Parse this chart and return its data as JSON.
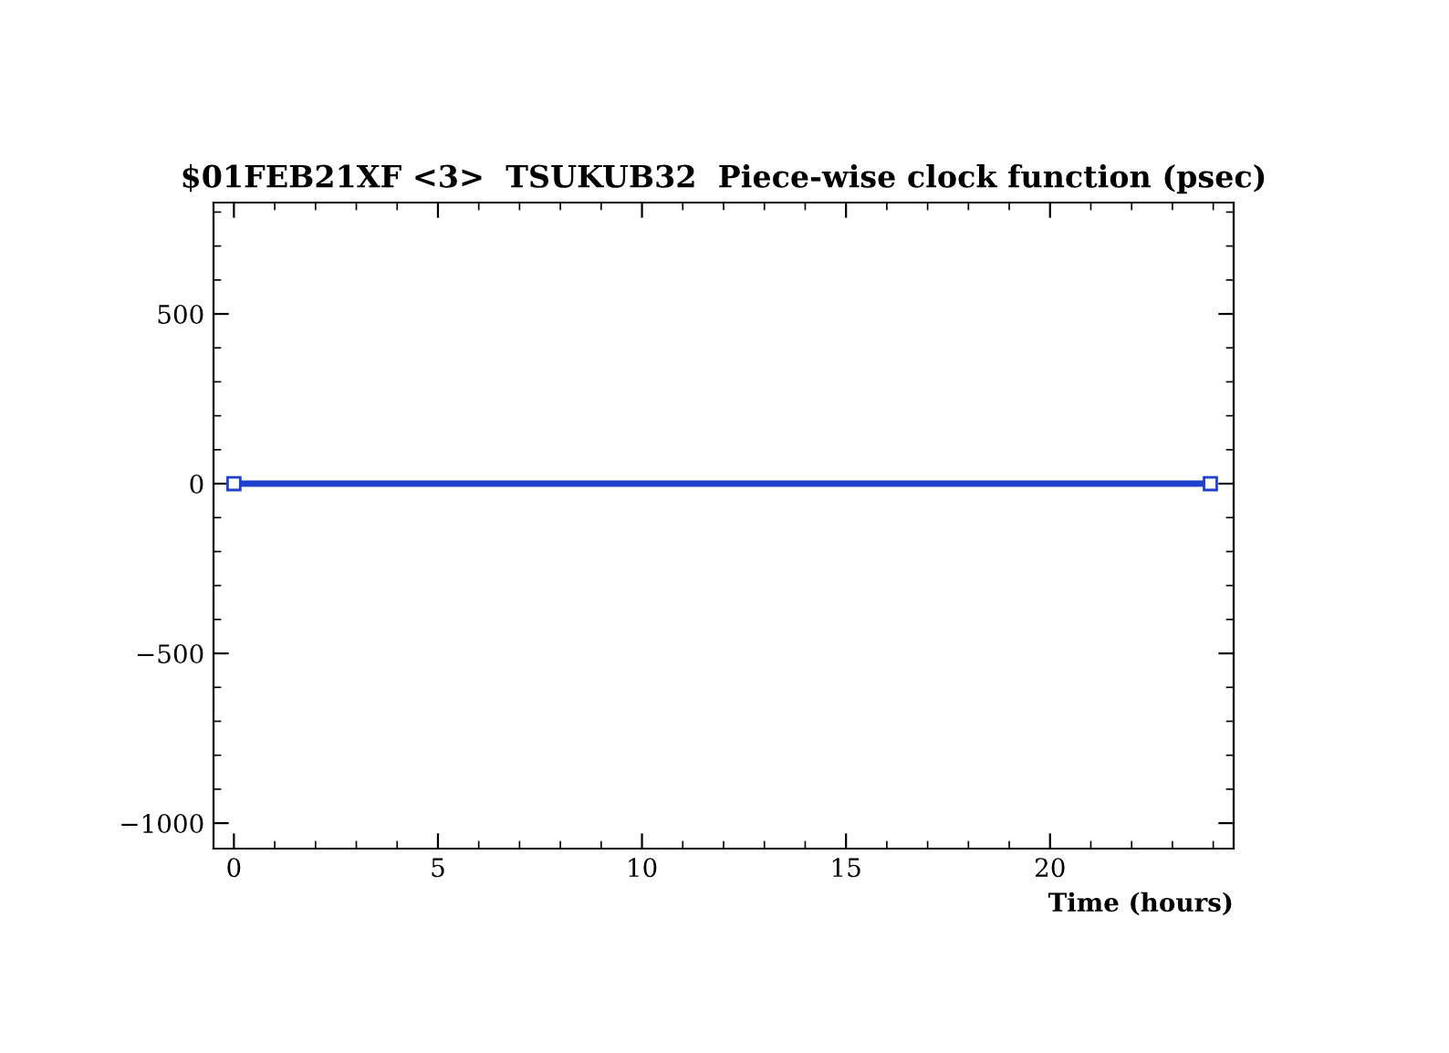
{
  "chart_data": {
    "type": "line",
    "title": "$01FEB21XF <3>  TSUKUB32  Piece-wise clock function (psec)",
    "xlabel": "Time (hours)",
    "x": [
      0,
      23.93
    ],
    "series": [
      {
        "color": "#1f3fcf",
        "values": [
          0,
          0
        ]
      }
    ],
    "xlim": [
      -0.5,
      24.5
    ],
    "xticks": [
      0,
      5,
      10,
      15,
      20
    ],
    "ylim": [
      -1075,
      828
    ],
    "yticks": [
      -1000,
      -500,
      0,
      500
    ],
    "marker": "square",
    "line_style": "solid",
    "grid": false,
    "legend": false
  }
}
